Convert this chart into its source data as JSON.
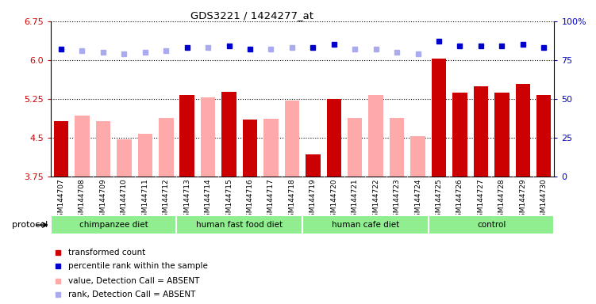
{
  "title": "GDS3221 / 1424277_at",
  "samples": [
    "GSM144707",
    "GSM144708",
    "GSM144709",
    "GSM144710",
    "GSM144711",
    "GSM144712",
    "GSM144713",
    "GSM144714",
    "GSM144715",
    "GSM144716",
    "GSM144717",
    "GSM144718",
    "GSM144719",
    "GSM144720",
    "GSM144721",
    "GSM144722",
    "GSM144723",
    "GSM144724",
    "GSM144725",
    "GSM144726",
    "GSM144727",
    "GSM144728",
    "GSM144729",
    "GSM144730"
  ],
  "bar_values": [
    4.82,
    4.92,
    4.82,
    4.47,
    4.57,
    4.88,
    5.32,
    5.28,
    5.38,
    4.85,
    4.87,
    5.22,
    4.17,
    5.24,
    4.88,
    5.32,
    4.88,
    4.52,
    6.03,
    5.37,
    5.49,
    5.37,
    5.54,
    5.32
  ],
  "bar_absent": [
    false,
    true,
    true,
    true,
    true,
    true,
    false,
    true,
    false,
    false,
    true,
    true,
    false,
    false,
    true,
    true,
    true,
    true,
    false,
    false,
    false,
    false,
    false,
    false
  ],
  "rank_values": [
    82,
    81,
    80,
    79,
    80,
    81,
    83,
    83,
    84,
    82,
    82,
    83,
    83,
    85,
    82,
    82,
    80,
    79,
    87,
    84,
    84,
    84,
    85,
    83
  ],
  "rank_absent": [
    false,
    true,
    true,
    true,
    true,
    true,
    false,
    true,
    false,
    false,
    true,
    true,
    false,
    false,
    true,
    true,
    true,
    true,
    false,
    false,
    false,
    false,
    false,
    false
  ],
  "groups": [
    {
      "label": "chimpanzee diet",
      "start": 0,
      "end": 6
    },
    {
      "label": "human fast food diet",
      "start": 6,
      "end": 12
    },
    {
      "label": "human cafe diet",
      "start": 12,
      "end": 18
    },
    {
      "label": "control",
      "start": 18,
      "end": 24
    }
  ],
  "ylim_left": [
    3.75,
    6.75
  ],
  "ylim_right": [
    0,
    100
  ],
  "yticks_left": [
    3.75,
    4.5,
    5.25,
    6.0,
    6.75
  ],
  "yticks_right": [
    0,
    25,
    50,
    75,
    100
  ],
  "bar_color_present": "#cc0000",
  "bar_color_absent": "#ffaaaa",
  "rank_color_present": "#0000cc",
  "rank_color_absent": "#aaaaee",
  "plot_bg": "#ffffff",
  "xtick_bg": "#d3d3d3",
  "group_color": "#90ee90"
}
